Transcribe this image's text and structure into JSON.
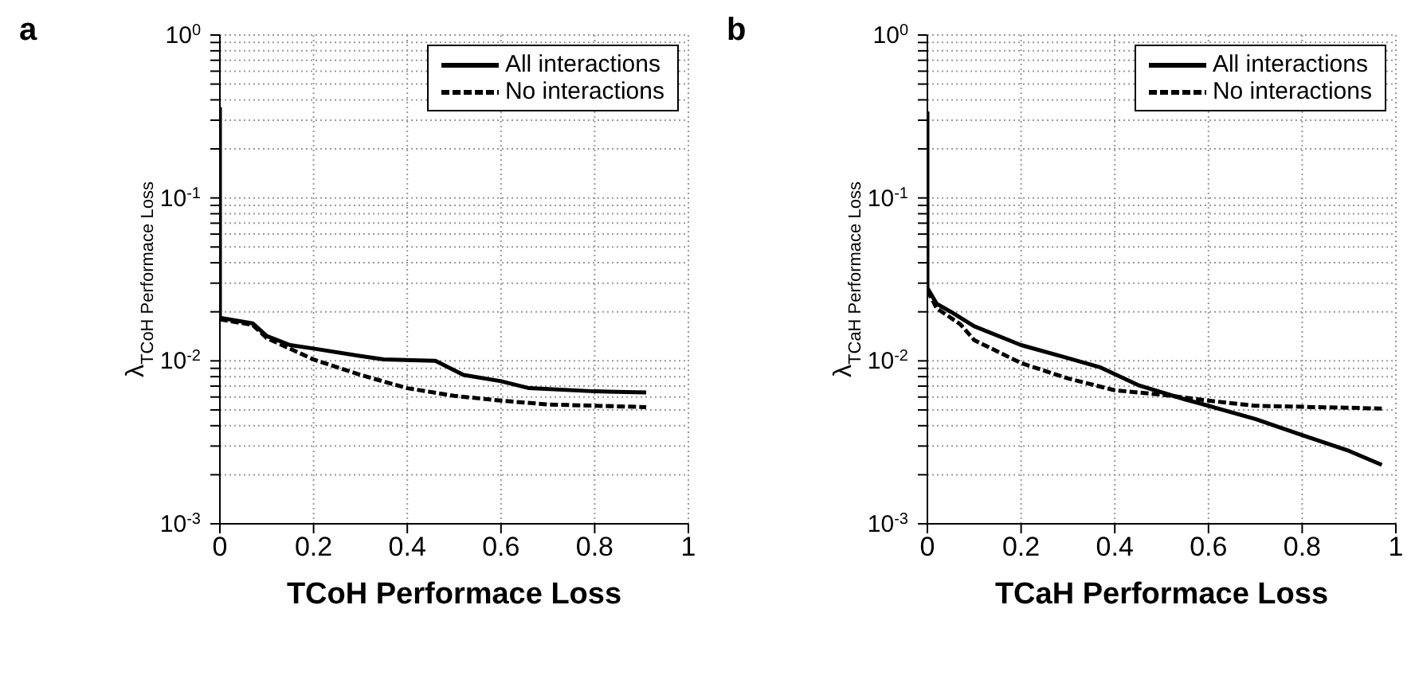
{
  "chart_data": [
    {
      "type": "line",
      "title": "a",
      "xlabel": "TCoH Performace Loss",
      "ylabel": "λ$_{TCoH Performace Loss}$",
      "log": "y",
      "grid": true,
      "legend": "top right",
      "xlim": [
        0,
        1
      ],
      "xticks": [
        0,
        0.2,
        0.4,
        0.6,
        0.8,
        1
      ],
      "ylim": [
        0.001,
        1
      ],
      "yticks": [
        {
          "value": 0.001,
          "label": "10$^{-3}$"
        },
        {
          "value": 0.002,
          "label": null
        },
        {
          "value": 0.003,
          "label": null
        },
        {
          "value": 0.004,
          "label": null
        },
        {
          "value": 0.005,
          "label": null
        },
        {
          "value": 0.006,
          "label": null
        },
        {
          "value": 0.007,
          "label": null
        },
        {
          "value": 0.008,
          "label": null
        },
        {
          "value": 0.009,
          "label": null
        },
        {
          "value": 0.01,
          "label": "10$^{-2}$"
        },
        {
          "value": 0.02,
          "label": null
        },
        {
          "value": 0.03,
          "label": null
        },
        {
          "value": 0.04,
          "label": null
        },
        {
          "value": 0.05,
          "label": null
        },
        {
          "value": 0.06,
          "label": null
        },
        {
          "value": 0.07,
          "label": null
        },
        {
          "value": 0.08,
          "label": null
        },
        {
          "value": 0.09,
          "label": null
        },
        {
          "value": 0.1,
          "label": "10$^{-1}$"
        },
        {
          "value": 0.2,
          "label": null
        },
        {
          "value": 0.3,
          "label": null
        },
        {
          "value": 0.4,
          "label": null
        },
        {
          "value": 0.5,
          "label": null
        },
        {
          "value": 0.6,
          "label": null
        },
        {
          "value": 0.7,
          "label": null
        },
        {
          "value": 0.8,
          "label": null
        },
        {
          "value": 0.9,
          "label": null
        },
        {
          "value": 1,
          "label": "10$^{0}$"
        }
      ],
      "series": [
        {
          "name": "All interactions",
          "color": "#000000",
          "line_style": "solid",
          "x": [
            0,
            0,
            0.07,
            0.1,
            0.15,
            0.2,
            0.3,
            0.35,
            0.46,
            0.52,
            0.6,
            0.66,
            0.8,
            0.91
          ],
          "values": [
            0.36,
            0.0184,
            0.017,
            0.0142,
            0.0125,
            0.0119,
            0.0107,
            0.0102,
            0.01,
            0.0082,
            0.0075,
            0.0068,
            0.0065,
            0.0064
          ]
        },
        {
          "name": "No interactions",
          "color": "#000000",
          "line_style": "dashed",
          "x": [
            0,
            0.07,
            0.1,
            0.2,
            0.3,
            0.4,
            0.5,
            0.6,
            0.7,
            0.91
          ],
          "values": [
            0.018,
            0.0166,
            0.0138,
            0.0102,
            0.0082,
            0.0068,
            0.0061,
            0.0057,
            0.0054,
            0.0052
          ]
        }
      ]
    },
    {
      "type": "line",
      "title": "b",
      "xlabel": "TCaH Performace Loss",
      "ylabel": "λ$_{TCaH Performace Loss}$",
      "log": "y",
      "grid": true,
      "legend": "top right",
      "xlim": [
        0,
        1
      ],
      "xticks": [
        0,
        0.2,
        0.4,
        0.6,
        0.8,
        1
      ],
      "ylim": [
        0.001,
        1
      ],
      "yticks": [
        {
          "value": 0.001,
          "label": "10$^{-3}$"
        },
        {
          "value": 0.002,
          "label": null
        },
        {
          "value": 0.003,
          "label": null
        },
        {
          "value": 0.004,
          "label": null
        },
        {
          "value": 0.005,
          "label": null
        },
        {
          "value": 0.006,
          "label": null
        },
        {
          "value": 0.007,
          "label": null
        },
        {
          "value": 0.008,
          "label": null
        },
        {
          "value": 0.009,
          "label": null
        },
        {
          "value": 0.01,
          "label": "10$^{-2}$"
        },
        {
          "value": 0.02,
          "label": null
        },
        {
          "value": 0.03,
          "label": null
        },
        {
          "value": 0.04,
          "label": null
        },
        {
          "value": 0.05,
          "label": null
        },
        {
          "value": 0.06,
          "label": null
        },
        {
          "value": 0.07,
          "label": null
        },
        {
          "value": 0.08,
          "label": null
        },
        {
          "value": 0.09,
          "label": null
        },
        {
          "value": 0.1,
          "label": "10$^{-1}$"
        },
        {
          "value": 0.2,
          "label": null
        },
        {
          "value": 0.3,
          "label": null
        },
        {
          "value": 0.4,
          "label": null
        },
        {
          "value": 0.5,
          "label": null
        },
        {
          "value": 0.6,
          "label": null
        },
        {
          "value": 0.7,
          "label": null
        },
        {
          "value": 0.8,
          "label": null
        },
        {
          "value": 0.9,
          "label": null
        },
        {
          "value": 1,
          "label": "10$^{0}$"
        }
      ],
      "series": [
        {
          "name": "All interactions",
          "color": "#000000",
          "line_style": "solid",
          "x": [
            0,
            0,
            0.02,
            0.05,
            0.1,
            0.2,
            0.3,
            0.37,
            0.45,
            0.55,
            0.6,
            0.7,
            0.8,
            0.9,
            0.97
          ],
          "values": [
            0.34,
            0.028,
            0.0224,
            0.02,
            0.0163,
            0.0125,
            0.0104,
            0.0091,
            0.0071,
            0.0058,
            0.0053,
            0.0044,
            0.0035,
            0.0028,
            0.0023
          ]
        },
        {
          "name": "No interactions",
          "color": "#000000",
          "line_style": "dashed",
          "x": [
            0,
            0.02,
            0.07,
            0.1,
            0.2,
            0.3,
            0.4,
            0.5,
            0.6,
            0.7,
            0.97
          ],
          "values": [
            0.027,
            0.021,
            0.0168,
            0.0134,
            0.0097,
            0.0078,
            0.0066,
            0.0062,
            0.0057,
            0.0053,
            0.0051
          ]
        }
      ]
    }
  ]
}
